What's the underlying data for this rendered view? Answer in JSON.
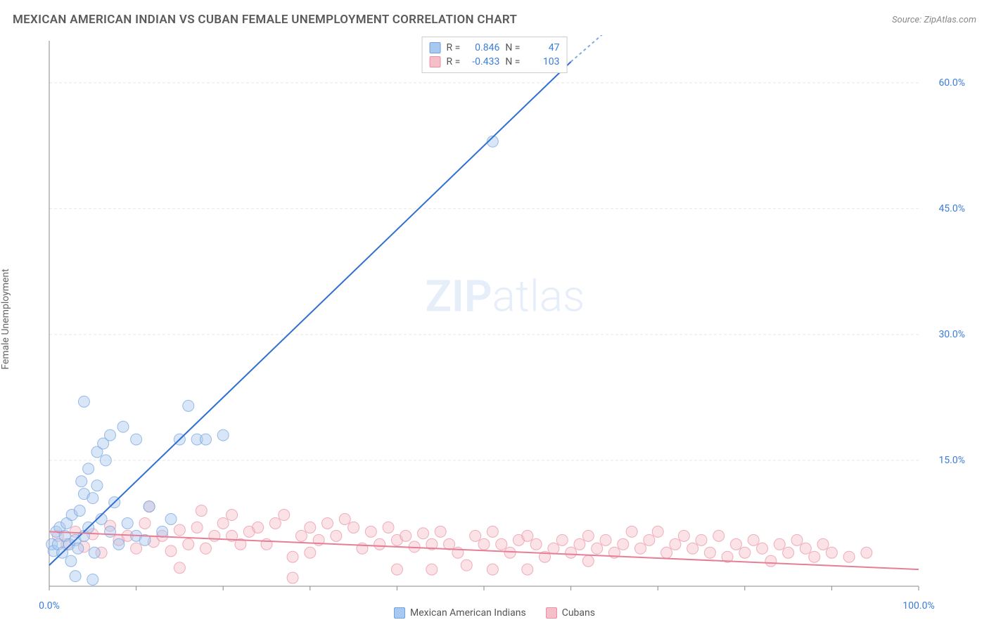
{
  "title": "MEXICAN AMERICAN INDIAN VS CUBAN FEMALE UNEMPLOYMENT CORRELATION CHART",
  "source_prefix": "Source: ",
  "source": "ZipAtlas.com",
  "ylabel": "Female Unemployment",
  "watermark": {
    "bold": "ZIP",
    "light": "atlas"
  },
  "chart": {
    "type": "scatter",
    "background_color": "#ffffff",
    "grid_color": "#e8e8e8",
    "axis_color": "#888888",
    "tick_label_color": "#3b7dd8",
    "xlim": [
      0,
      100
    ],
    "ylim": [
      0,
      65
    ],
    "xticks": [
      0,
      10,
      20,
      30,
      40,
      50,
      60,
      70,
      80,
      90,
      100
    ],
    "xtick_labels_shown": {
      "0": "0.0%",
      "100": "100.0%"
    },
    "yticks": [
      15,
      30,
      45,
      60
    ],
    "ytick_labels": [
      "15.0%",
      "30.0%",
      "45.0%",
      "60.0%"
    ],
    "marker_radius": 8,
    "marker_opacity": 0.45,
    "line_width": 2,
    "series": [
      {
        "key": "mex",
        "label": "Mexican American Indians",
        "color_fill": "#a9c8ef",
        "color_stroke": "#6fa3de",
        "line_color": "#2f6fd0",
        "R": "0.846",
        "N": "47",
        "trend": {
          "x1": 0,
          "y1": 2.5,
          "x2_solid": 60,
          "y2_solid": 62.5,
          "x2_dash": 65,
          "y2_dash": 67
        },
        "points": [
          [
            0.3,
            5.0
          ],
          [
            0.5,
            4.2
          ],
          [
            0.8,
            6.5
          ],
          [
            1.0,
            5.0
          ],
          [
            1.2,
            7.0
          ],
          [
            1.5,
            4.0
          ],
          [
            1.8,
            6.0
          ],
          [
            2.0,
            7.5
          ],
          [
            2.3,
            5.0
          ],
          [
            2.6,
            8.5
          ],
          [
            2.5,
            3.0
          ],
          [
            3.0,
            5.5
          ],
          [
            3.3,
            4.5
          ],
          [
            3.5,
            9.0
          ],
          [
            3.7,
            12.5
          ],
          [
            4.0,
            6.0
          ],
          [
            4.0,
            11.0
          ],
          [
            4.5,
            7.0
          ],
          [
            4.5,
            14.0
          ],
          [
            5.0,
            10.5
          ],
          [
            5.2,
            4.0
          ],
          [
            5.5,
            12.0
          ],
          [
            5.5,
            16.0
          ],
          [
            6.0,
            8.0
          ],
          [
            6.2,
            17.0
          ],
          [
            6.5,
            15.0
          ],
          [
            4.0,
            22.0
          ],
          [
            7.0,
            6.5
          ],
          [
            7.0,
            18.0
          ],
          [
            7.5,
            10.0
          ],
          [
            8.0,
            5.0
          ],
          [
            8.5,
            19.0
          ],
          [
            9.0,
            7.5
          ],
          [
            10.0,
            6.0
          ],
          [
            10.0,
            17.5
          ],
          [
            11.0,
            5.5
          ],
          [
            11.5,
            9.5
          ],
          [
            13.0,
            6.5
          ],
          [
            14.0,
            8.0
          ],
          [
            15.0,
            17.5
          ],
          [
            16.0,
            21.5
          ],
          [
            17.0,
            17.5
          ],
          [
            18.0,
            17.5
          ],
          [
            20.0,
            18.0
          ],
          [
            5.0,
            0.8
          ],
          [
            3.0,
            1.2
          ],
          [
            51.0,
            53.0
          ]
        ]
      },
      {
        "key": "cub",
        "label": "Cubans",
        "color_fill": "#f4bfc9",
        "color_stroke": "#e890a3",
        "line_color": "#e57f96",
        "R": "-0.433",
        "N": "103",
        "trend": {
          "x1": 0,
          "y1": 6.5,
          "x2_solid": 100,
          "y2_solid": 2.0
        },
        "points": [
          [
            1,
            6.0
          ],
          [
            2,
            5.0
          ],
          [
            3,
            6.5
          ],
          [
            4,
            4.7
          ],
          [
            5,
            6.2
          ],
          [
            6,
            4.0
          ],
          [
            7,
            7.2
          ],
          [
            8,
            5.5
          ],
          [
            9,
            6.0
          ],
          [
            10,
            4.5
          ],
          [
            11,
            7.5
          ],
          [
            11.5,
            9.5
          ],
          [
            12,
            5.3
          ],
          [
            13,
            6.0
          ],
          [
            14,
            4.2
          ],
          [
            15,
            6.7
          ],
          [
            15,
            2.2
          ],
          [
            16,
            5.0
          ],
          [
            17,
            7.0
          ],
          [
            17.5,
            9.0
          ],
          [
            18,
            4.5
          ],
          [
            19,
            6.0
          ],
          [
            20,
            7.5
          ],
          [
            21,
            6.0
          ],
          [
            21,
            8.5
          ],
          [
            22,
            5.0
          ],
          [
            23,
            6.5
          ],
          [
            24,
            7.0
          ],
          [
            25,
            5.0
          ],
          [
            26,
            7.5
          ],
          [
            27,
            8.5
          ],
          [
            28,
            3.5
          ],
          [
            28,
            1.0
          ],
          [
            29,
            6.0
          ],
          [
            30,
            7.0
          ],
          [
            30,
            4.0
          ],
          [
            31,
            5.5
          ],
          [
            32,
            7.5
          ],
          [
            33,
            6.0
          ],
          [
            34,
            8.0
          ],
          [
            35,
            7.0
          ],
          [
            36,
            4.5
          ],
          [
            37,
            6.5
          ],
          [
            38,
            5.0
          ],
          [
            39,
            7.0
          ],
          [
            40,
            5.5
          ],
          [
            40,
            2.0
          ],
          [
            41,
            6.0
          ],
          [
            42,
            4.7
          ],
          [
            43,
            6.3
          ],
          [
            44,
            5.0
          ],
          [
            44,
            2.0
          ],
          [
            45,
            6.5
          ],
          [
            46,
            5.0
          ],
          [
            47,
            4.0
          ],
          [
            48,
            2.5
          ],
          [
            49,
            6.0
          ],
          [
            50,
            5.0
          ],
          [
            51,
            6.5
          ],
          [
            51,
            2.0
          ],
          [
            52,
            5.0
          ],
          [
            53,
            4.0
          ],
          [
            54,
            5.5
          ],
          [
            55,
            6.0
          ],
          [
            55,
            2.0
          ],
          [
            56,
            5.0
          ],
          [
            57,
            3.5
          ],
          [
            58,
            4.5
          ],
          [
            59,
            5.5
          ],
          [
            60,
            4.0
          ],
          [
            61,
            5.0
          ],
          [
            62,
            6.0
          ],
          [
            62,
            3.0
          ],
          [
            63,
            4.5
          ],
          [
            64,
            5.5
          ],
          [
            65,
            4.0
          ],
          [
            66,
            5.0
          ],
          [
            67,
            6.5
          ],
          [
            68,
            4.5
          ],
          [
            69,
            5.5
          ],
          [
            70,
            6.5
          ],
          [
            71,
            4.0
          ],
          [
            72,
            5.0
          ],
          [
            73,
            6.0
          ],
          [
            74,
            4.5
          ],
          [
            75,
            5.5
          ],
          [
            76,
            4.0
          ],
          [
            77,
            6.0
          ],
          [
            78,
            3.5
          ],
          [
            79,
            5.0
          ],
          [
            80,
            4.0
          ],
          [
            81,
            5.5
          ],
          [
            82,
            4.5
          ],
          [
            83,
            3.0
          ],
          [
            84,
            5.0
          ],
          [
            85,
            4.0
          ],
          [
            86,
            5.5
          ],
          [
            87,
            4.5
          ],
          [
            88,
            3.5
          ],
          [
            89,
            5.0
          ],
          [
            90,
            4.0
          ],
          [
            92,
            3.5
          ],
          [
            94,
            4.0
          ]
        ]
      }
    ]
  },
  "stats_labels": {
    "R": "R =",
    "N": "N ="
  }
}
